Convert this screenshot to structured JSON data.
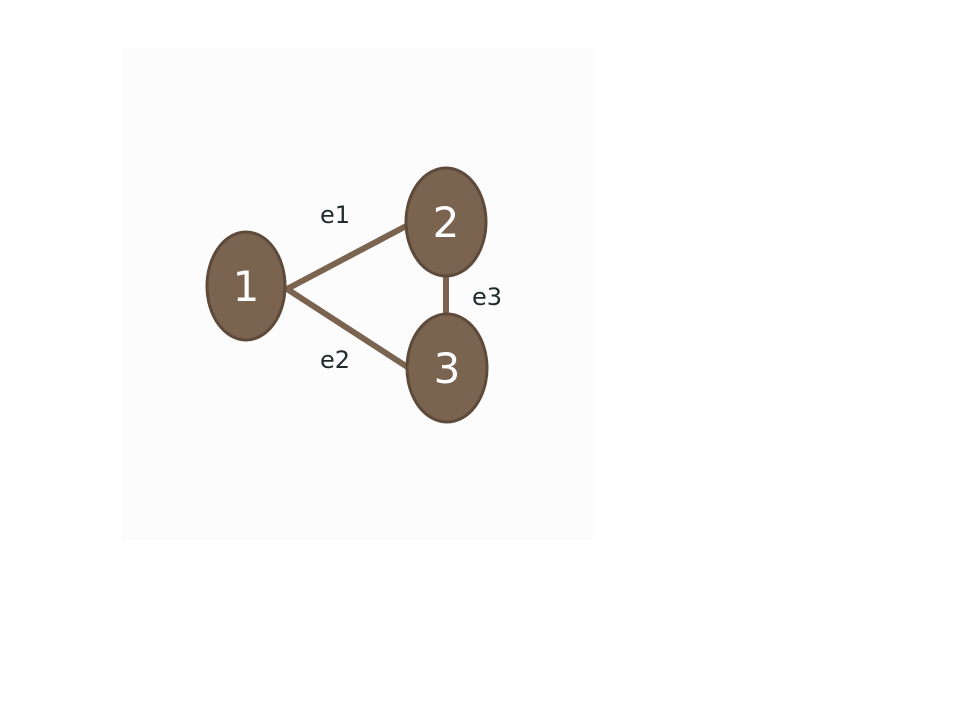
{
  "graph": {
    "node_color": "#7a6450",
    "node_stroke": "#5e4a3a",
    "edge_color": "#7a6450",
    "label_color": "#ffffff",
    "edge_label_color": "#1f2a2a",
    "nodes": [
      {
        "id": "1",
        "label": "1"
      },
      {
        "id": "2",
        "label": "2"
      },
      {
        "id": "3",
        "label": "3"
      }
    ],
    "edges": [
      {
        "id": "e1",
        "label": "e1",
        "from": "1",
        "to": "2"
      },
      {
        "id": "e2",
        "label": "e2",
        "from": "1",
        "to": "3"
      },
      {
        "id": "e3",
        "label": "e3",
        "from": "2",
        "to": "3"
      }
    ]
  }
}
